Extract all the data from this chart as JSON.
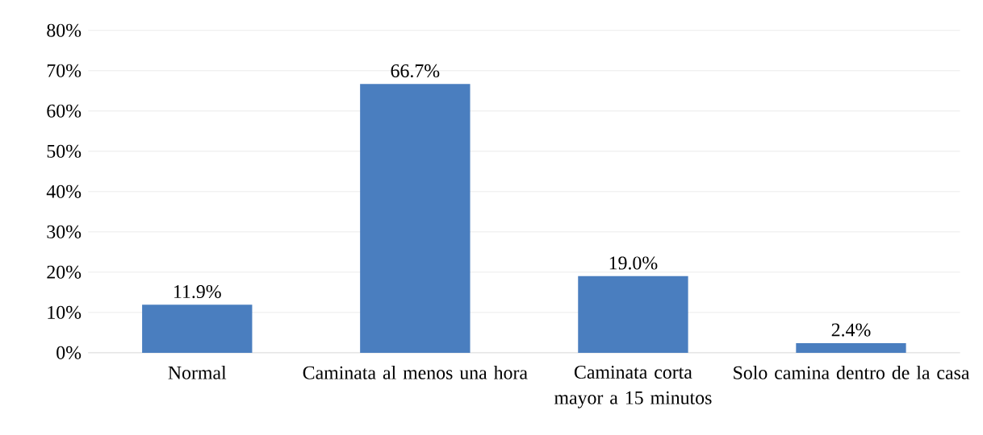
{
  "chart_data": {
    "type": "bar",
    "categories": [
      "Normal",
      "Caminata al menos una hora",
      "Caminata corta mayor a 15 minutos",
      "Solo camina dentro de la casa"
    ],
    "values": [
      11.9,
      66.7,
      19.0,
      2.4
    ],
    "value_labels": [
      "11.9%",
      "66.7%",
      "19.0%",
      "2.4%"
    ],
    "color": "#4a7ebf",
    "ylim": [
      0,
      80
    ],
    "yticks": [
      {
        "value": 0,
        "label": "0%"
      },
      {
        "value": 10,
        "label": "10%"
      },
      {
        "value": 20,
        "label": "20%"
      },
      {
        "value": 30,
        "label": "30%"
      },
      {
        "value": 40,
        "label": "40%"
      },
      {
        "value": 50,
        "label": "50%"
      },
      {
        "value": 60,
        "label": "60%"
      },
      {
        "value": 70,
        "label": "70%"
      },
      {
        "value": 80,
        "label": "80%"
      }
    ],
    "grid": "y"
  }
}
